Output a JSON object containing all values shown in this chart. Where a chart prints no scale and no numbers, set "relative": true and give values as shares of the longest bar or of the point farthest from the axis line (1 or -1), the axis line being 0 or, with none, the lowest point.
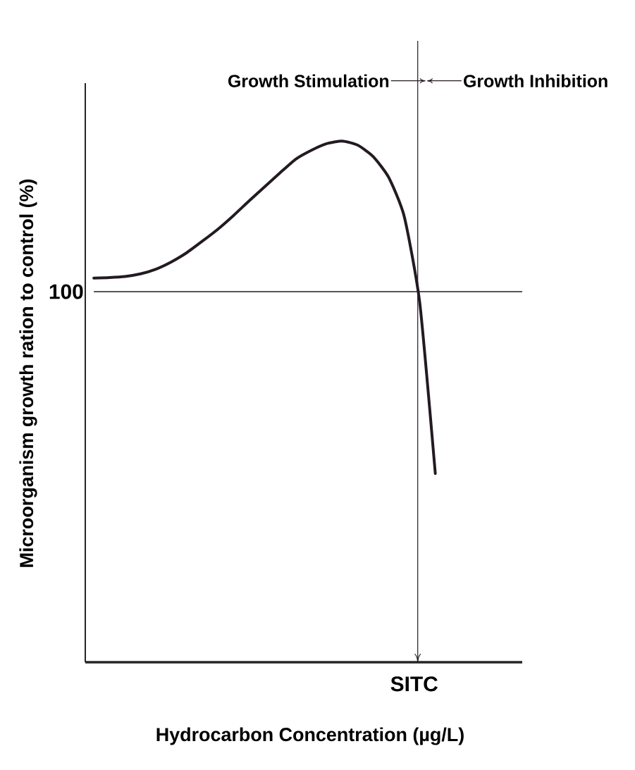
{
  "chart_data": {
    "type": "line",
    "xlabel": "Hydrocarbon Concentration (µg/L)",
    "ylabel": "Microorganism growth ration to control (%)",
    "categories": [
      null,
      null,
      null,
      null,
      null,
      null,
      null,
      null,
      null,
      null,
      null,
      null,
      null,
      null,
      null,
      null,
      null,
      null,
      null,
      null,
      null,
      null,
      null
    ],
    "relative": true,
    "series": [
      {
        "color": "#231a22",
        "values": [
          0.737,
          0.738,
          0.74,
          0.745,
          0.754,
          0.768,
          0.786,
          0.808,
          0.831,
          0.857,
          0.885,
          0.912,
          0.939,
          0.965,
          0.982,
          0.995,
          1.0,
          0.992,
          0.97,
          0.93,
          0.855,
          0.689,
          0.362
        ]
      }
    ],
    "ref_lines": [
      {
        "axis": "y",
        "value": 0.711,
        "color": "#231a22"
      }
    ],
    "annotations": [
      "Growth Stimulation",
      "Growth Inhibition",
      "SITC",
      "100"
    ]
  }
}
